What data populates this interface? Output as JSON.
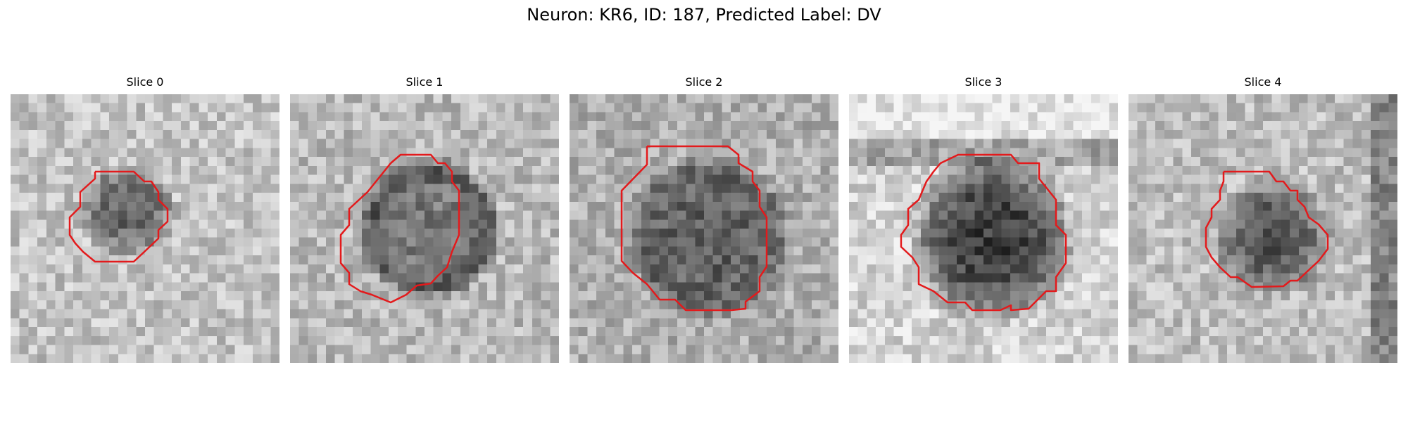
{
  "title": "Neuron: KR6, ID: 187, Predicted Label: DV",
  "panels": [
    {
      "label": "Slice 0",
      "contour_color": "#e31a1c"
    },
    {
      "label": "Slice 1",
      "contour_color": "#e31a1c"
    },
    {
      "label": "Slice 2",
      "contour_color": "#e31a1c"
    },
    {
      "label": "Slice 3",
      "contour_color": "#e31a1c"
    },
    {
      "label": "Slice 4",
      "contour_color": "#e31a1c"
    }
  ]
}
